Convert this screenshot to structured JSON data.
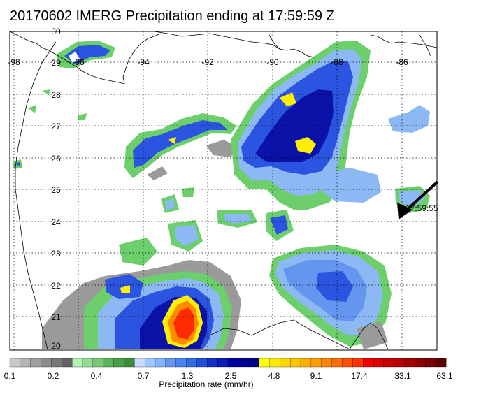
{
  "title": "20170602 IMERG Precipitation ending at 17:59:59 Z",
  "lat_labels": [
    "30",
    "29",
    "28",
    "27",
    "26",
    "25",
    "24",
    "23",
    "22",
    "21",
    "20"
  ],
  "lon_labels": [
    "-98",
    "-96",
    "-94",
    "-92",
    "-90",
    "-88",
    "-86"
  ],
  "track_time_label": "17:59:55",
  "colorbar": {
    "title": "Precipitation rate (mm/hr)",
    "tick_labels": [
      "0.1",
      "0.2",
      "0.4",
      "0.7",
      "1.3",
      "2.5",
      "4.8",
      "9.1",
      "17.4",
      "33.1",
      "63.1"
    ],
    "colors": [
      "#c8c8c8",
      "#b4b4b4",
      "#a0a0a0",
      "#8c8c8c",
      "#787878",
      "#646464",
      "#b4f0b4",
      "#96dc96",
      "#78c878",
      "#5ab45a",
      "#46a046",
      "#3c8c3c",
      "#c8dcff",
      "#a0c8ff",
      "#82b4ff",
      "#6496f0",
      "#4682f0",
      "#2d6ee6",
      "#1e50dc",
      "#1432c8",
      "#0a1eb4",
      "#0000a0",
      "#000096",
      "#00008c",
      "#ffff00",
      "#ffeb00",
      "#ffd700",
      "#ffc300",
      "#ffaf00",
      "#ff9b00",
      "#ff8700",
      "#ff6e00",
      "#ff5000",
      "#ff3200",
      "#f00000",
      "#dc0000",
      "#c80000",
      "#b40000",
      "#a00000",
      "#8c0000",
      "#780000",
      "#5a0000"
    ]
  },
  "map_colors": {
    "gray": "#9a9a9a",
    "green": "#6ccf6c",
    "lightblue": "#8cb8f4",
    "blue": "#2b55e0",
    "darkblue": "#0a12a8",
    "yellow": "#ffee00",
    "orange": "#ff8c00",
    "red": "#ff2a00"
  }
}
